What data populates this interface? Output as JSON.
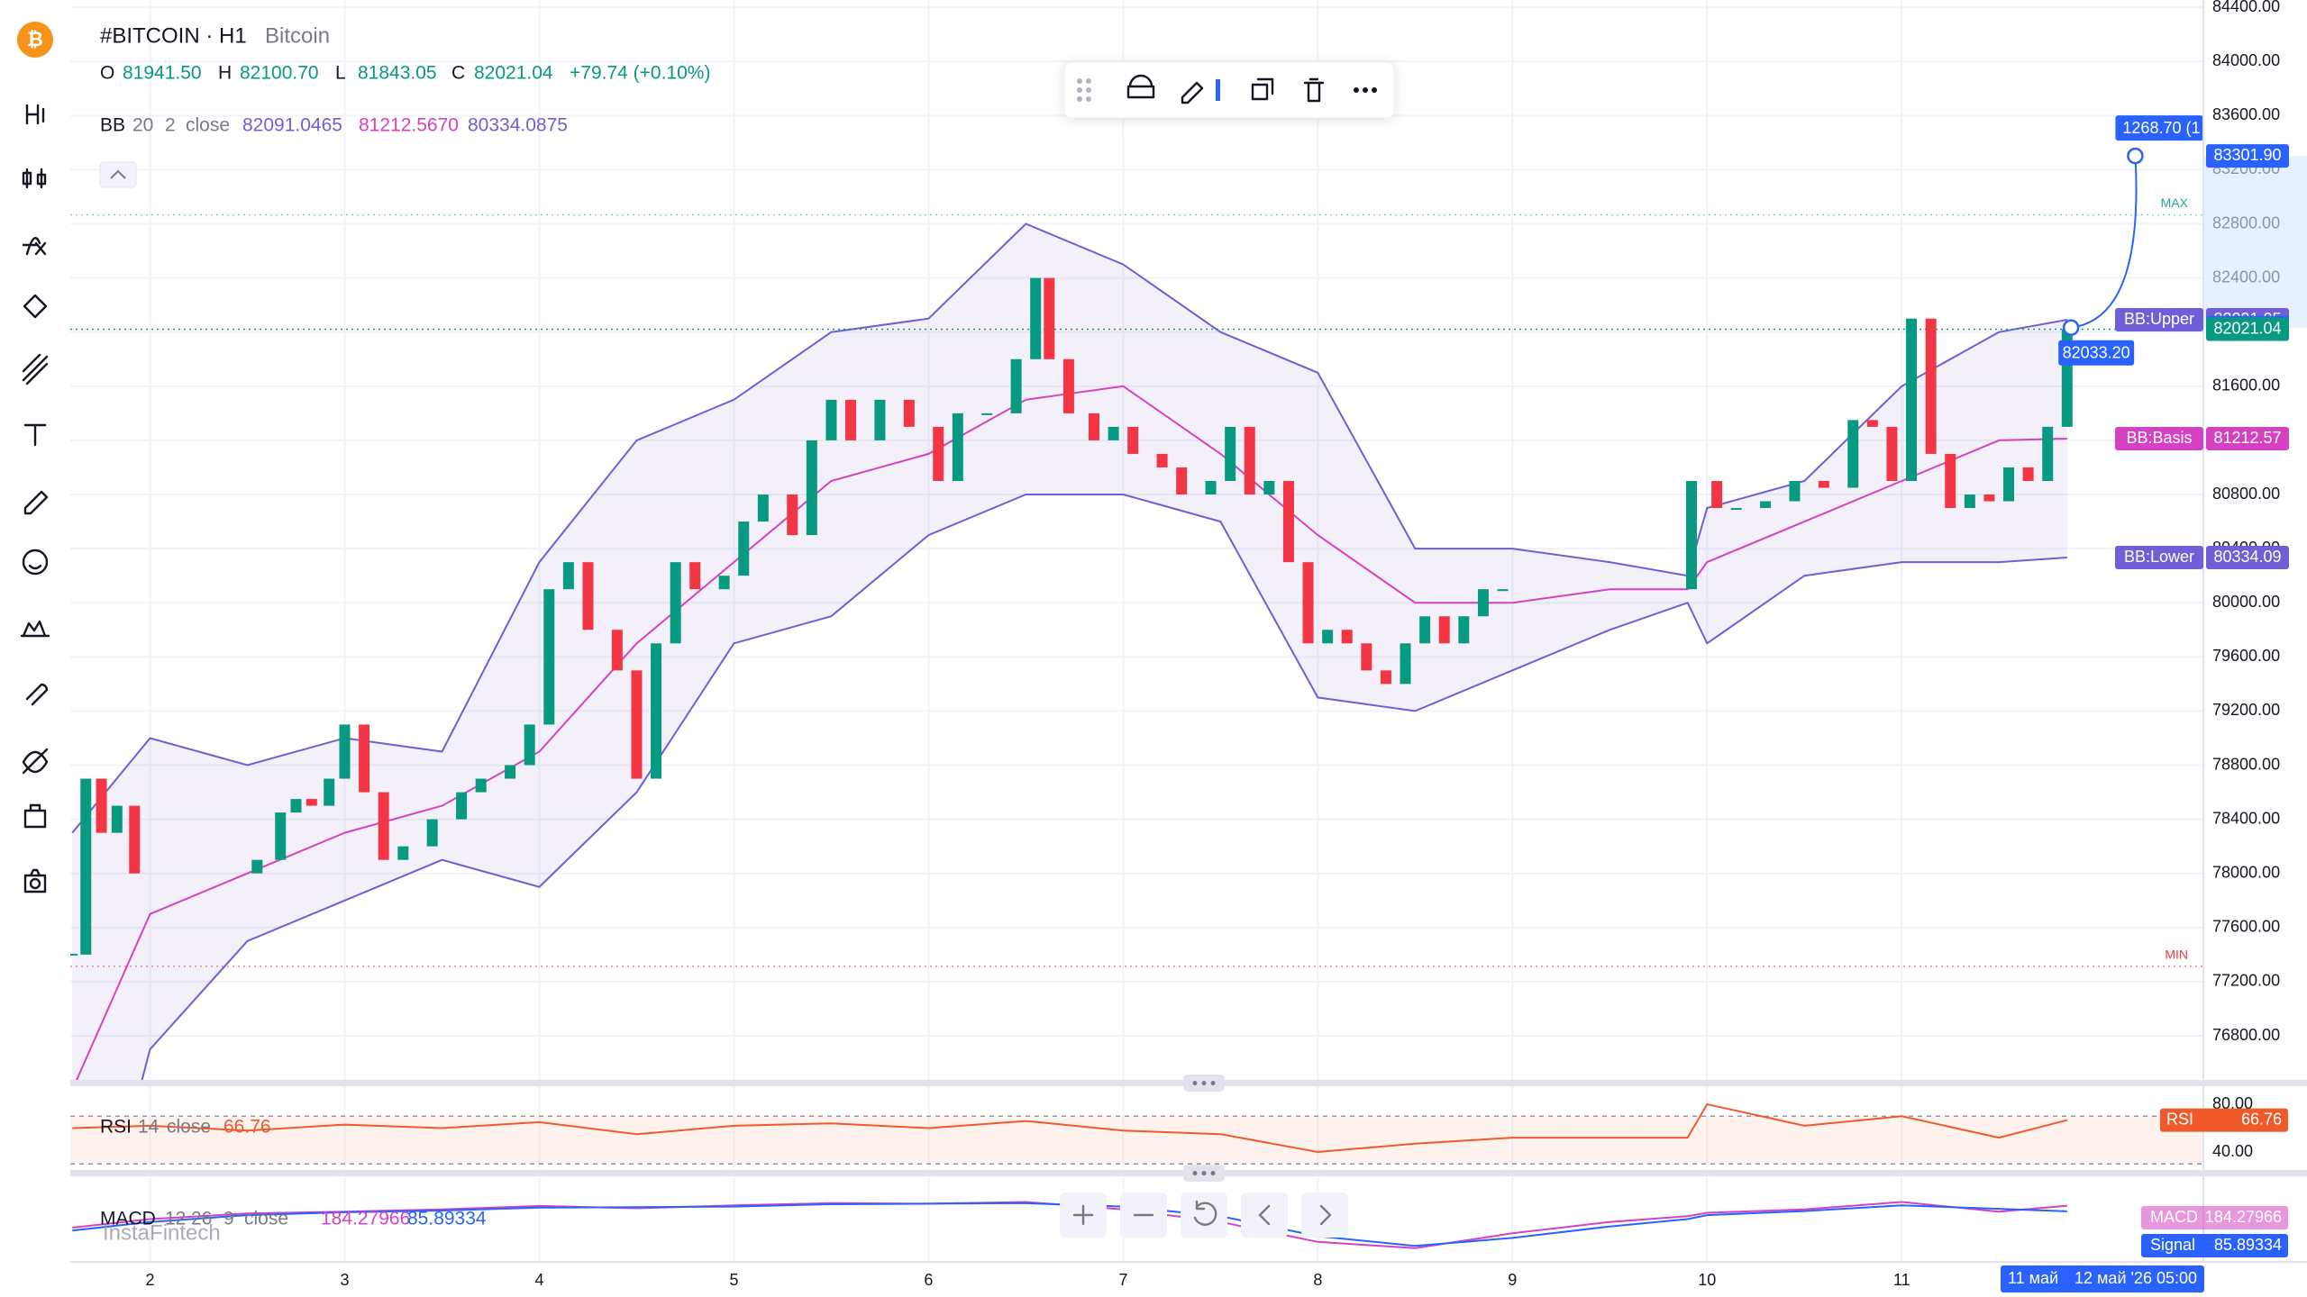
{
  "header": {
    "symbol": "#BITCOIN · H1",
    "description": "Bitcoin",
    "o_key": "O",
    "o": "81941.50",
    "h_key": "H",
    "h": "82100.70",
    "l_key": "L",
    "l": "81843.05",
    "c_key": "C",
    "c": "82021.04",
    "change": "+79.74 (+0.10%)",
    "bb_name": "BB",
    "bb_len": "20",
    "bb_mult": "2",
    "bb_src": "close",
    "bb_upper": "82091.0465",
    "bb_basis": "81212.5670",
    "bb_lower": "80334.0875",
    "rsi_name": "RSI",
    "rsi_len": "14",
    "rsi_src": "close",
    "rsi_value": "66.76",
    "macd_name": "MACD",
    "macd_fast": "12",
    "macd_slow": "26",
    "macd_sig": "9",
    "macd_src": "close",
    "macd_value": "184.27966",
    "macd_signal": "85.89334",
    "watermark": "InstaFintech"
  },
  "chart_data": {
    "type": "candlestick",
    "xlim": [
      1.59,
      12.55
    ],
    "ylim": [
      76454,
      84454
    ],
    "xticks": [
      2,
      3,
      4,
      5,
      6,
      7,
      8,
      9,
      10,
      11
    ],
    "yticks": [
      {
        "value": 84400,
        "label": "84400.00"
      },
      {
        "value": 84000,
        "label": "84000.00"
      },
      {
        "value": 83600,
        "label": "83600.00"
      },
      {
        "value": 83200,
        "label": "83200.00"
      },
      {
        "value": 82800,
        "label": "82800.00"
      },
      {
        "value": 82400,
        "label": "82400.00"
      },
      {
        "value": 82000,
        "label": "82000.00"
      },
      {
        "value": 81600,
        "label": "81600.00"
      },
      {
        "value": 81200,
        "label": "81200.00"
      },
      {
        "value": 80800,
        "label": "80800.00"
      },
      {
        "value": 80400,
        "label": "80400.00"
      },
      {
        "value": 80000,
        "label": "80000.00"
      },
      {
        "value": 79600,
        "label": "79600.00"
      },
      {
        "value": 79200,
        "label": "79200.00"
      },
      {
        "value": 78800,
        "label": "78800.00"
      },
      {
        "value": 78400,
        "label": "78400.00"
      },
      {
        "value": 78000,
        "label": "78000.00"
      },
      {
        "value": 77600,
        "label": "77600.00"
      },
      {
        "value": 77200,
        "label": "77200.00"
      },
      {
        "value": 76800,
        "label": "76800.00"
      }
    ],
    "grid": true,
    "up_color": "#089981",
    "down_color": "#f23645",
    "x": [
      1.6,
      1.67,
      1.75,
      1.83,
      1.92,
      2.55,
      2.67,
      2.75,
      2.83,
      2.92,
      3.0,
      3.1,
      3.2,
      3.3,
      3.45,
      3.6,
      3.7,
      3.85,
      3.95,
      4.05,
      4.15,
      4.25,
      4.4,
      4.5,
      4.6,
      4.7,
      4.8,
      4.95,
      5.05,
      5.15,
      5.3,
      5.4,
      5.5,
      5.6,
      5.75,
      5.9,
      6.05,
      6.15,
      6.3,
      6.45,
      6.55,
      6.62,
      6.72,
      6.85,
      6.95,
      7.05,
      7.2,
      7.3,
      7.45,
      7.55,
      7.65,
      7.75,
      7.85,
      7.95,
      8.05,
      8.15,
      8.25,
      8.35,
      8.45,
      8.55,
      8.65,
      8.75,
      8.85,
      8.95,
      9.92,
      10.05,
      10.15,
      10.3,
      10.45,
      10.6,
      10.75,
      10.85,
      10.95,
      11.05,
      11.15,
      11.25,
      11.35,
      11.45,
      11.55,
      11.65,
      11.75,
      11.85
    ],
    "close": [
      77400,
      78700,
      78300,
      78500,
      78000,
      78100,
      78450,
      78550,
      78500,
      78700,
      79100,
      78600,
      78100,
      78200,
      78400,
      78600,
      78700,
      78800,
      79100,
      80100,
      80300,
      79800,
      79500,
      78700,
      79700,
      80300,
      80100,
      80200,
      80600,
      80800,
      80500,
      81200,
      81500,
      81200,
      81500,
      81300,
      80900,
      81400,
      81400,
      81800,
      82400,
      81800,
      81400,
      81200,
      81300,
      81100,
      81000,
      80800,
      80900,
      81300,
      80800,
      80900,
      80300,
      79700,
      79800,
      79700,
      79500,
      79400,
      79700,
      79900,
      79700,
      79900,
      80100,
      80100,
      80900,
      80700,
      80700,
      80750,
      80900,
      80850,
      81350,
      81300,
      80900,
      82100,
      81100,
      80700,
      80800,
      80750,
      81000,
      80900,
      81300,
      82021.04
    ],
    "bb": {
      "upper_color": "#6f5fd6",
      "basis_color": "#d542c1",
      "fill": "#7e57c2",
      "x": [
        1.6,
        2.0,
        2.5,
        3.0,
        3.5,
        4.0,
        4.5,
        5.0,
        5.5,
        6.0,
        6.5,
        7.0,
        7.5,
        8.0,
        8.5,
        9.0,
        9.5,
        9.9,
        10.0,
        10.5,
        11.0,
        11.5,
        11.85
      ],
      "upper": [
        78300,
        79000,
        78800,
        79000,
        78900,
        80300,
        81200,
        81500,
        82000,
        82100,
        82800,
        82500,
        82000,
        81700,
        80400,
        80400,
        80300,
        80200,
        80700,
        80900,
        81600,
        82000,
        82091.05
      ],
      "basis": [
        76400,
        77700,
        78000,
        78300,
        78500,
        78900,
        79700,
        80300,
        80900,
        81100,
        81500,
        81600,
        81100,
        80500,
        80000,
        80000,
        80100,
        80100,
        80300,
        80600,
        80900,
        81200,
        81212.57
      ],
      "lower": [
        74500,
        76700,
        77500,
        77800,
        78100,
        77900,
        78600,
        79700,
        79900,
        80500,
        80800,
        80800,
        80600,
        79300,
        79200,
        79500,
        79800,
        80000,
        79700,
        80200,
        80300,
        80300,
        80334.09
      ]
    },
    "max_line": {
      "label": "MAX",
      "value": 82867
    },
    "min_line": {
      "label": "MIN",
      "value": 77313
    },
    "price_labels": [
      {
        "label": "83301.90",
        "value": 83301.9,
        "color": "#2962ff"
      },
      {
        "name": "BB:Upper",
        "label": "82091.05",
        "value": 82091.05,
        "color": "#6f5fd6"
      },
      {
        "label": "82033.20",
        "value": 82033.2,
        "color": "#2962ff"
      },
      {
        "label": "82021.04",
        "value": 82021.04,
        "color": "#089981"
      },
      {
        "name": "BB:Basis",
        "label": "81212.57",
        "value": 81212.57,
        "color": "#d542c1"
      },
      {
        "name": "BB:Lower",
        "label": "80334.09",
        "value": 80334.09,
        "color": "#6f5fd6"
      }
    ],
    "drawing": {
      "start_x": 11.87,
      "start": 82033.2,
      "end_x": 12.2,
      "end": 83301.9,
      "start_label": "82033.20",
      "end_label": "1268.70 (1"
    },
    "rsi": {
      "ylim": [
        25.7,
        93.6
      ],
      "yticks": [
        {
          "value": 80,
          "label": "80.00"
        },
        {
          "value": 40,
          "label": "40.00"
        }
      ],
      "band": [
        30,
        70
      ],
      "color": "#f0592a",
      "x": [
        1.6,
        2.0,
        2.5,
        3.0,
        3.5,
        4.0,
        4.5,
        5.0,
        5.5,
        6.0,
        6.5,
        7.0,
        7.5,
        8.0,
        8.5,
        9.0,
        9.5,
        9.9,
        10.0,
        10.5,
        11.0,
        11.5,
        11.85
      ],
      "values": [
        60,
        62,
        58,
        63,
        60,
        65,
        55,
        62,
        64,
        60,
        66,
        58,
        55,
        40,
        47,
        52,
        52,
        52,
        80,
        62,
        70,
        52,
        66.76
      ]
    },
    "macd": {
      "ylim": [
        -800,
        700
      ],
      "macd_color": "#d542c1",
      "signal_color": "#2962ff",
      "macd_badge": "MACD",
      "signal_badge": "Signal",
      "x": [
        1.6,
        2.0,
        2.5,
        3.0,
        3.5,
        4.0,
        4.5,
        5.0,
        5.5,
        6.0,
        6.5,
        7.0,
        7.5,
        8.0,
        8.5,
        9.0,
        9.5,
        9.9,
        10.0,
        10.5,
        11.0,
        11.5,
        11.85
      ],
      "macd": [
        -200,
        -50,
        50,
        80,
        120,
        180,
        140,
        190,
        230,
        220,
        250,
        120,
        -100,
        -450,
        -560,
        -300,
        -100,
        0,
        60,
        120,
        250,
        80,
        184.27966
      ],
      "signal": [
        -250,
        -100,
        20,
        70,
        100,
        150,
        160,
        170,
        210,
        220,
        230,
        170,
        0,
        -350,
        -520,
        -380,
        -180,
        -50,
        20,
        90,
        190,
        130,
        85.89334
      ]
    },
    "time_badge_prev": "11 май",
    "time_badge": "12 май '26 05:00"
  }
}
